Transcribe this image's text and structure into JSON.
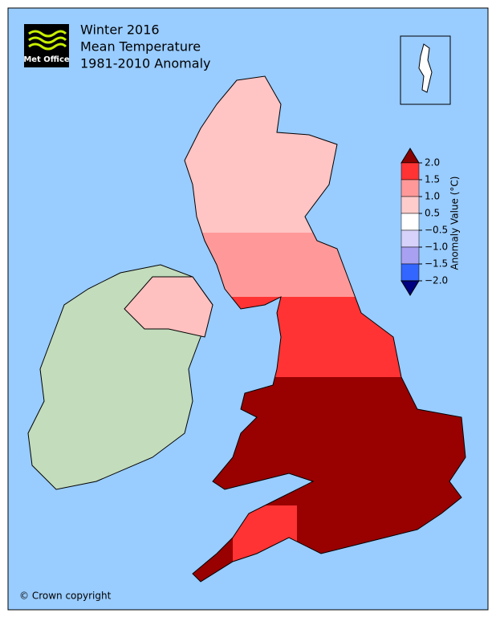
{
  "header": {
    "logo": "Met Office",
    "title_lines": [
      "Winter 2016",
      "Mean Temperature",
      "1981-2010 Anomaly"
    ]
  },
  "colorbar": {
    "label": "Anomaly Value (°C)",
    "ticks": [
      {
        "value": 2,
        "label": "2.0"
      },
      {
        "value": 1.5,
        "label": "1.5"
      },
      {
        "value": 1,
        "label": "1.0"
      },
      {
        "value": 0.5,
        "label": "0.5"
      },
      {
        "value": -0.5,
        "label": "−0.5"
      },
      {
        "value": -1,
        "label": "−1.0"
      },
      {
        "value": -1.5,
        "label": "−1.5"
      },
      {
        "value": -2,
        "label": "−2.0"
      }
    ],
    "colors": [
      "#8b0000",
      "#ff3333",
      "#ff9999",
      "#ffcccc",
      "#ffffff",
      "#d6d2fa",
      "#a8a0f0",
      "#3366ff",
      "#000080"
    ]
  },
  "footer": {
    "copyright": "© Crown copyright"
  }
}
